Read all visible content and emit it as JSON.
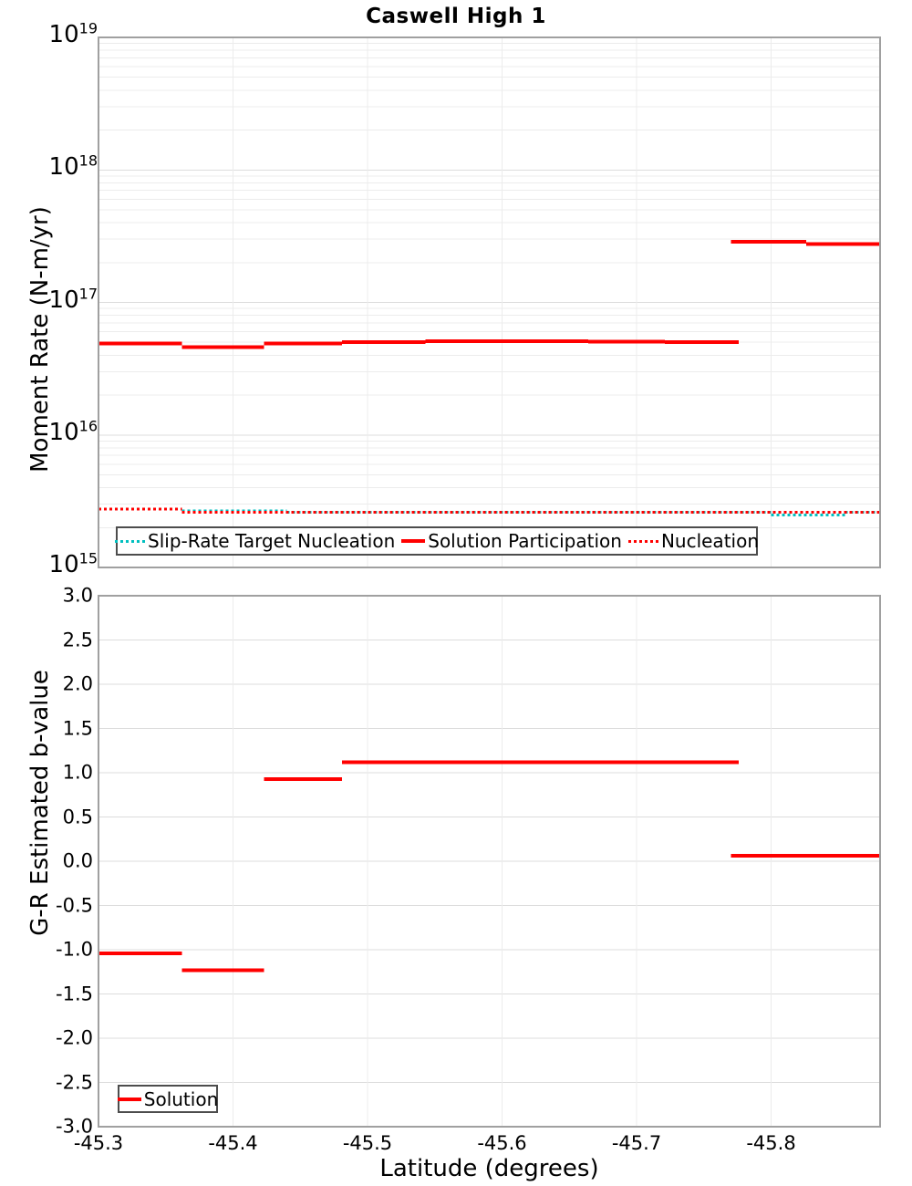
{
  "title": "Caswell High 1",
  "axes": {
    "x_label": "Latitude (degrees)",
    "x_ticks": [
      "-45.3",
      "-45.4",
      "-45.5",
      "-45.6",
      "-45.7",
      "-45.8"
    ],
    "top_y_label": "Moment Rate (N-m/yr)",
    "top_y_tick_exponents": [
      19,
      18,
      17,
      16,
      15
    ],
    "bottom_y_label": "G-R Estimated b-value",
    "bottom_y_ticks": [
      "3.0",
      "2.5",
      "2.0",
      "1.5",
      "1.0",
      "0.5",
      "0.0",
      "-0.5",
      "-1.0",
      "-1.5",
      "-2.0",
      "-2.5",
      "-3.0"
    ]
  },
  "colors": {
    "solution_red": "#ff0000",
    "slip_rate_cyan": "#00bfbf",
    "grid_minor": "#ececec",
    "grid_major": "#dcdcdc",
    "border": "#a0a0a0",
    "legend_border": "#4d4d4d"
  },
  "legends": {
    "top": [
      {
        "label": "Slip-Rate Target Nucleation",
        "color": "#00bfbf",
        "style": "dotted"
      },
      {
        "label": "Solution Participation",
        "color": "#ff0000",
        "style": "solid"
      },
      {
        "label": "Nucleation",
        "color": "#ff0000",
        "style": "dotted"
      }
    ],
    "bottom": [
      {
        "label": "Solution",
        "color": "#ff0000",
        "style": "solid"
      }
    ]
  },
  "chart_data": [
    {
      "type": "line",
      "panel": "top",
      "title": "Caswell High 1",
      "xlabel": "Latitude (degrees)",
      "ylabel": "Moment Rate (N-m/yr)",
      "x_range": [
        -45.3,
        -45.881
      ],
      "x_reversed": true,
      "y_scale": "log",
      "ylim": [
        1000000000000000.0,
        1e+19
      ],
      "grid": true,
      "legend_position": "inside bottom center",
      "series": [
        {
          "name": "Slip-Rate Target Nucleation",
          "color": "#00bfbf",
          "line": "dotted",
          "width": 3,
          "segments": [
            [
              -45.3,
              -45.362,
              2750000000000000.0
            ],
            [
              -45.362,
              -45.44,
              2680000000000000.0
            ],
            [
              -45.44,
              -45.8,
              2600000000000000.0
            ],
            [
              -45.8,
              -45.855,
              2480000000000000.0
            ],
            [
              -45.855,
              -45.881,
              2600000000000000.0
            ]
          ]
        },
        {
          "name": "Solution Participation",
          "color": "#ff0000",
          "line": "solid",
          "width": 4,
          "segments": [
            [
              -45.3,
              -45.362,
              4.9e+16
            ],
            [
              -45.362,
              -45.423,
              4.6e+16
            ],
            [
              -45.423,
              -45.481,
              4.9e+16
            ],
            [
              -45.481,
              -45.543,
              5e+16
            ],
            [
              -45.543,
              -45.604,
              5.1e+16
            ],
            [
              -45.604,
              -45.664,
              5.1e+16
            ],
            [
              -45.664,
              -45.721,
              5.05e+16
            ],
            [
              -45.721,
              -45.776,
              5e+16
            ],
            [
              -45.77,
              -45.826,
              2.87e+17
            ],
            [
              -45.826,
              -45.881,
              2.76e+17
            ]
          ]
        },
        {
          "name": "Nucleation",
          "color": "#ff0000",
          "line": "dotted",
          "width": 3,
          "segments": [
            [
              -45.3,
              -45.362,
              2750000000000000.0
            ],
            [
              -45.362,
              -45.881,
              2600000000000000.0
            ]
          ]
        }
      ]
    },
    {
      "type": "line",
      "panel": "bottom",
      "xlabel": "Latitude (degrees)",
      "ylabel": "G-R Estimated b-value",
      "x_range": [
        -45.3,
        -45.881
      ],
      "x_reversed": true,
      "y_scale": "linear",
      "ylim": [
        -3.0,
        3.0
      ],
      "grid": true,
      "legend_position": "inside bottom left",
      "series": [
        {
          "name": "Solution",
          "color": "#ff0000",
          "line": "solid",
          "width": 4,
          "segments": [
            [
              -45.3,
              -45.362,
              -1.04
            ],
            [
              -45.362,
              -45.423,
              -1.23
            ],
            [
              -45.423,
              -45.481,
              0.93
            ],
            [
              -45.481,
              -45.543,
              1.12
            ],
            [
              -45.543,
              -45.604,
              1.12
            ],
            [
              -45.604,
              -45.664,
              1.12
            ],
            [
              -45.664,
              -45.721,
              1.12
            ],
            [
              -45.721,
              -45.776,
              1.12
            ],
            [
              -45.77,
              -45.826,
              0.06
            ],
            [
              -45.826,
              -45.881,
              0.06
            ]
          ]
        }
      ]
    }
  ]
}
